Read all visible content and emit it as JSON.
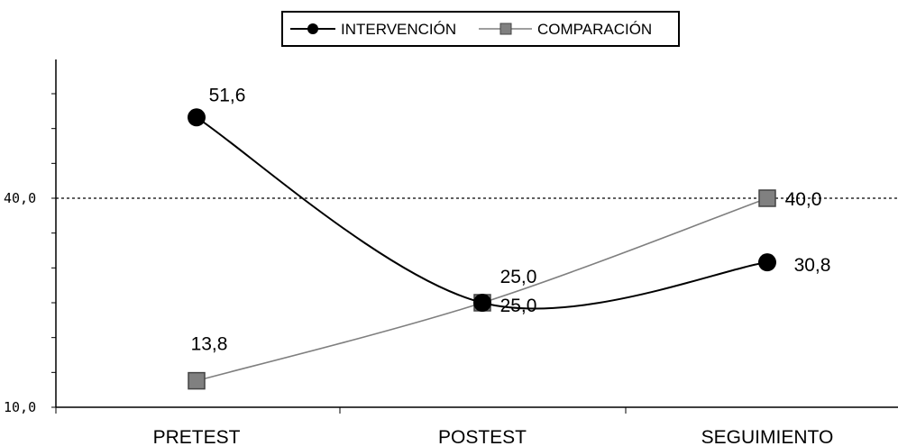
{
  "chart_data": {
    "type": "line",
    "categories": [
      "PRETEST",
      "POSTEST",
      "SEGUIMIENTO"
    ],
    "series": [
      {
        "name": "INTERVENCIÓN",
        "values": [
          51.6,
          25.0,
          30.8
        ],
        "labels": [
          "51,6",
          "25,0",
          "30,8"
        ],
        "color": "#000000",
        "marker": "circle"
      },
      {
        "name": "COMPARACIÓN",
        "values": [
          13.8,
          25.0,
          40.0
        ],
        "labels": [
          "13,8",
          "25,0",
          "40,0"
        ],
        "color": "#7f7f7f",
        "marker": "square"
      }
    ],
    "yticks": [
      10,
      40
    ],
    "ytick_labels": [
      "10,0",
      "40,0"
    ],
    "ylim": [
      10,
      60
    ],
    "reference_line": {
      "value": 40,
      "style": "dotted"
    },
    "grid": false,
    "legend_position": "top"
  }
}
